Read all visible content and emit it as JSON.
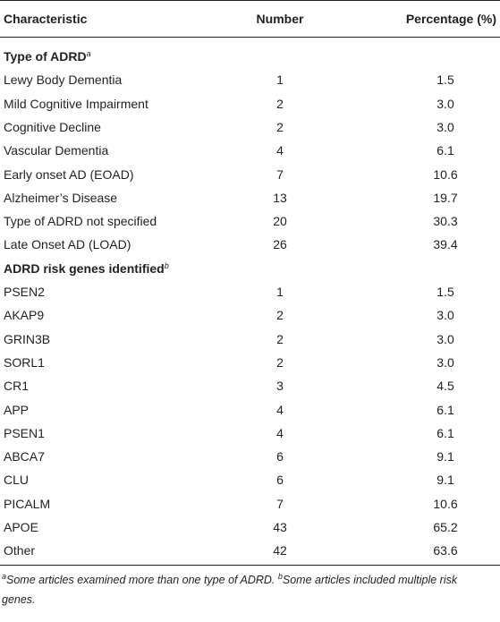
{
  "table": {
    "header": [
      "Characteristic",
      "Number",
      "Percentage (%)"
    ],
    "sections": [
      {
        "title": "Type of ADRD",
        "title_sup": "a",
        "rows": [
          [
            "Lewy Body Dementia",
            "1",
            "1.5"
          ],
          [
            "Mild Cognitive Impairment",
            "2",
            "3.0"
          ],
          [
            "Cognitive Decline",
            "2",
            "3.0"
          ],
          [
            "Vascular Dementia",
            "4",
            "6.1"
          ],
          [
            "Early onset AD (EOAD)",
            "7",
            "10.6"
          ],
          [
            "Alzheimer’s Disease",
            "13",
            "19.7"
          ],
          [
            "Type of ADRD not specified",
            "20",
            "30.3"
          ],
          [
            "Late Onset AD (LOAD)",
            "26",
            "39.4"
          ]
        ]
      },
      {
        "title": "ADRD risk genes identified",
        "title_sup": "b",
        "rows": [
          [
            "PSEN2",
            "1",
            "1.5"
          ],
          [
            "AKAP9",
            "2",
            "3.0"
          ],
          [
            "GRIN3B",
            "2",
            "3.0"
          ],
          [
            "SORL1",
            "2",
            "3.0"
          ],
          [
            "CR1",
            "3",
            "4.5"
          ],
          [
            "APP",
            "4",
            "6.1"
          ],
          [
            "PSEN1",
            "4",
            "6.1"
          ],
          [
            "ABCA7",
            "6",
            "9.1"
          ],
          [
            "CLU",
            "6",
            "9.1"
          ],
          [
            "PICALM",
            "7",
            "10.6"
          ],
          [
            "APOE",
            "43",
            "65.2"
          ],
          [
            "Other",
            "42",
            "63.6"
          ]
        ]
      }
    ],
    "footnotes": [
      {
        "mark": "a",
        "text": "Some articles examined more than one type of ADRD. "
      },
      {
        "mark": "b",
        "text": "Some articles included multiple risk genes."
      }
    ]
  }
}
